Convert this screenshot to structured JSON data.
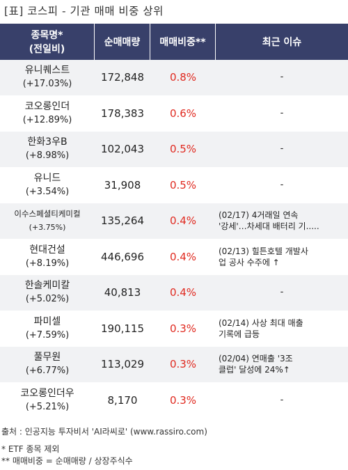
{
  "title": "[표] 코스피 - 기관 매매 비중 상위",
  "header": {
    "name_line1": "종목명*",
    "name_line2": "(전일비)",
    "qty": "순매매량",
    "ratio": "매매비중**",
    "issue": "최근 이슈"
  },
  "rows": [
    {
      "name": "유니퀘스트",
      "change": "(+17.03%)",
      "qty": "172,848",
      "ratio": "0.8%",
      "issue1": "-",
      "issue2": ""
    },
    {
      "name": "코오롱인더",
      "change": "(+12.89%)",
      "qty": "178,383",
      "ratio": "0.6%",
      "issue1": "-",
      "issue2": ""
    },
    {
      "name": "한화3우B",
      "change": "(+8.98%)",
      "qty": "102,043",
      "ratio": "0.5%",
      "issue1": "-",
      "issue2": ""
    },
    {
      "name": "유니드",
      "change": "(+3.54%)",
      "qty": "31,908",
      "ratio": "0.5%",
      "issue1": "-",
      "issue2": ""
    },
    {
      "name": "이수스페셜티케미컬",
      "change": "(+3.75%)",
      "qty": "135,264",
      "ratio": "0.4%",
      "issue1": "(02/17) 4거래일 연속",
      "issue2": "'강세'…차세대 배터리 기....."
    },
    {
      "name": "현대건설",
      "change": "(+8.19%)",
      "qty": "446,696",
      "ratio": "0.4%",
      "issue1": "(02/13) 힐튼호텔 개발사",
      "issue2": "업 공사 수주에 ↑"
    },
    {
      "name": "한솔케미칼",
      "change": "(+5.02%)",
      "qty": "40,813",
      "ratio": "0.4%",
      "issue1": "-",
      "issue2": ""
    },
    {
      "name": "파미셀",
      "change": "(+7.59%)",
      "qty": "190,115",
      "ratio": "0.3%",
      "issue1": "(02/14) 사상 최대 매출",
      "issue2": "기록에 급등"
    },
    {
      "name": "풀무원",
      "change": "(+6.77%)",
      "qty": "113,029",
      "ratio": "0.3%",
      "issue1": "(02/04) 연매출 '3조",
      "issue2": "클럽' 달성에 24%↑"
    },
    {
      "name": "코오롱인더우",
      "change": "(+5.21%)",
      "qty": "8,170",
      "ratio": "0.3%",
      "issue1": "-",
      "issue2": ""
    }
  ],
  "footer": {
    "source": "출처 : 인공지능 투자비서 'AI라씨로' (www.rassiro.com)",
    "note1": "* ETF 종목 제외",
    "note2": "** 매매비중 = 순매매량 / 상장주식수"
  }
}
